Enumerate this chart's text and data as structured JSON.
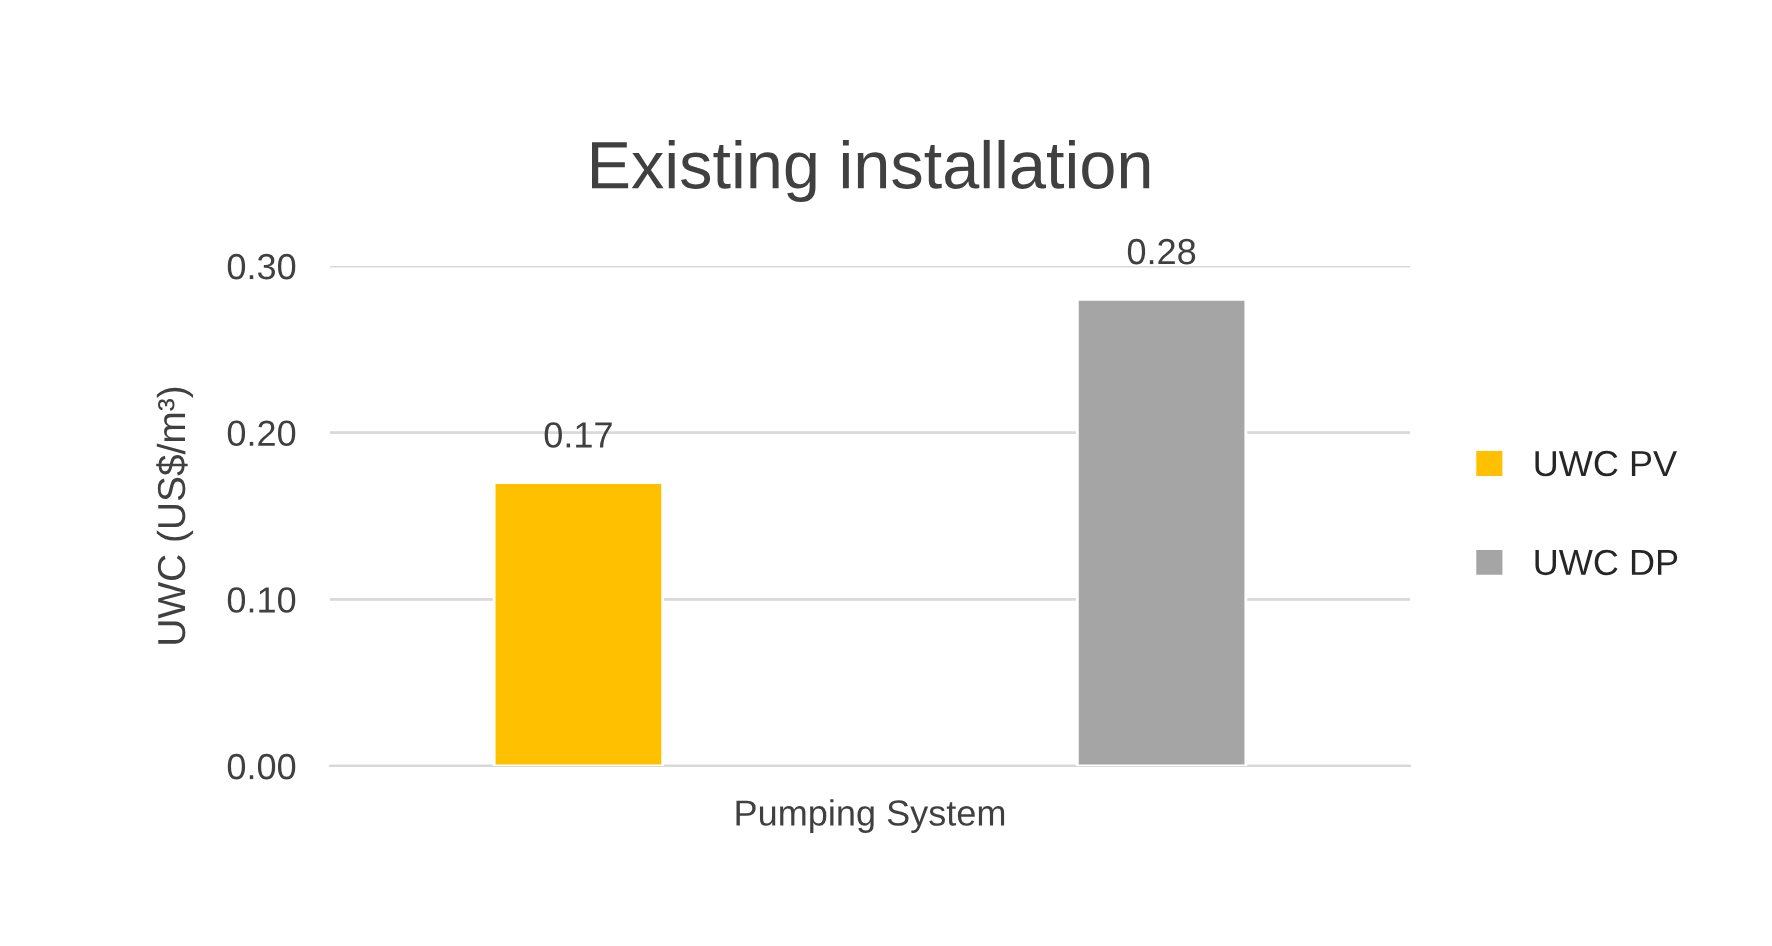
{
  "chart_data": {
    "type": "bar",
    "title": "Existing installation",
    "ylabel": "UWC (US$/m³)",
    "categories": [
      "Pumping System"
    ],
    "series": [
      {
        "name": "UWC PV",
        "color": "#ffc000",
        "values": [
          0.17
        ]
      },
      {
        "name": "UWC DP",
        "color": "#a5a5a5",
        "values": [
          0.28
        ]
      }
    ],
    "ylim": [
      0,
      0.3
    ],
    "yticks": [
      {
        "value": 0,
        "label": "0.00"
      },
      {
        "value": 0.1,
        "label": "0.10"
      },
      {
        "value": 0.2,
        "label": "0.20"
      },
      {
        "value": 0.3,
        "label": "0.30"
      }
    ],
    "grid": "y",
    "legend": "right",
    "data_labels": true
  }
}
